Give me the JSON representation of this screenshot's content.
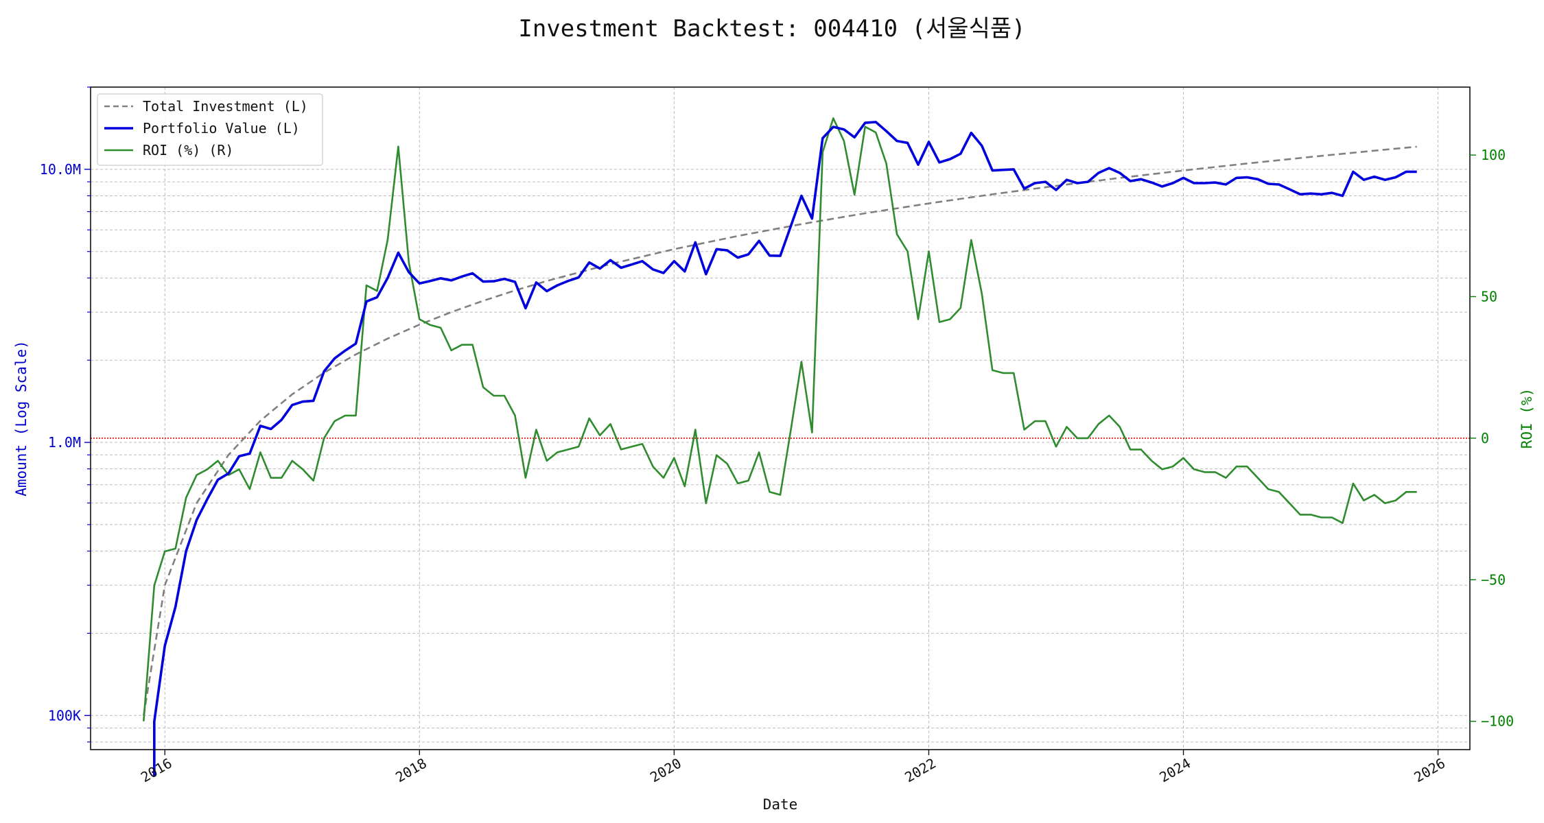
{
  "colors": {
    "portfolio": "#0000dd",
    "investment": "#808080",
    "roi": "#2e8b2e",
    "roi_axis": "#008000",
    "left_axis": "#0000cc",
    "zero_line": "#dd0000",
    "grid": "#bbbbbb"
  },
  "chart_data": {
    "type": "line",
    "title": "Investment Backtest: 004410 (서울식품)",
    "xlabel": "Date",
    "ylabel_left": "Amount (Log Scale)",
    "ylabel_right": "ROI (%)",
    "left_scale": "log",
    "left_ylim": [
      75000,
      20000000
    ],
    "right_ylim": [
      -110,
      124
    ],
    "xlim": [
      "2015-06-01",
      "2026-04-01"
    ],
    "grid": true,
    "legend_position": "top-left",
    "x_ticks": [
      "2016",
      "2018",
      "2020",
      "2022",
      "2024",
      "2026"
    ],
    "left_ticks": [
      {
        "value": 100000,
        "label": "100K"
      },
      {
        "value": 1000000,
        "label": "1.0M"
      },
      {
        "value": 10000000,
        "label": "10.0M"
      }
    ],
    "right_ticks": [
      {
        "value": -100,
        "label": "−100"
      },
      {
        "value": -50,
        "label": "−50"
      },
      {
        "value": 0,
        "label": "0"
      },
      {
        "value": 50,
        "label": "50"
      },
      {
        "value": 100,
        "label": "100"
      }
    ],
    "reference_line": {
      "axis": "right",
      "value": 0,
      "style": "dotted"
    },
    "series": [
      {
        "name": "Total Investment (L)",
        "axis": "left",
        "style": "dashed",
        "x": [
          "2015-11",
          "2016-01",
          "2016-04",
          "2016-07",
          "2016-10",
          "2017-01",
          "2017-04",
          "2017-07",
          "2017-10",
          "2018-01",
          "2018-04",
          "2018-07",
          "2018-10",
          "2019-01",
          "2019-07",
          "2020-01",
          "2020-07",
          "2021-01",
          "2021-07",
          "2022-01",
          "2022-07",
          "2023-01",
          "2023-07",
          "2024-01",
          "2024-07",
          "2025-01",
          "2025-07",
          "2025-11"
        ],
        "values": [
          100000,
          300000,
          600000,
          900000,
          1200000,
          1500000,
          1800000,
          2100000,
          2400000,
          2700000,
          3000000,
          3300000,
          3600000,
          3900000,
          4500000,
          5100000,
          5700000,
          6300000,
          6900000,
          7500000,
          8100000,
          8700000,
          9300000,
          9900000,
          10500000,
          11100000,
          11700000,
          12100000
        ]
      },
      {
        "name": "Portfolio Value (L)",
        "axis": "left",
        "style": "solid",
        "x": [
          "2015-12",
          "2015-12",
          "2016-01",
          "2016-02",
          "2016-03",
          "2016-04",
          "2016-05",
          "2016-06",
          "2016-07",
          "2016-08",
          "2016-09",
          "2016-10",
          "2016-11",
          "2016-12",
          "2017-01",
          "2017-02",
          "2017-03",
          "2017-04",
          "2017-05",
          "2017-06",
          "2017-07",
          "2017-08",
          "2017-09",
          "2017-10",
          "2017-11",
          "2017-12",
          "2018-01",
          "2018-02",
          "2018-03",
          "2018-04",
          "2018-05",
          "2018-06",
          "2018-07",
          "2018-08",
          "2018-09",
          "2018-10",
          "2018-11",
          "2018-12",
          "2019-01",
          "2019-02",
          "2019-03",
          "2019-04",
          "2019-05",
          "2019-06",
          "2019-07",
          "2019-08",
          "2019-09",
          "2019-10",
          "2019-11",
          "2019-12",
          "2020-01",
          "2020-02",
          "2020-03",
          "2020-04",
          "2020-05",
          "2020-06",
          "2020-07",
          "2020-08",
          "2020-09",
          "2020-10",
          "2020-11",
          "2020-12",
          "2021-01",
          "2021-02",
          "2021-03",
          "2021-04",
          "2021-05",
          "2021-06",
          "2021-07",
          "2021-08",
          "2021-09",
          "2021-10",
          "2021-11",
          "2021-12",
          "2022-01",
          "2022-02",
          "2022-03",
          "2022-04",
          "2022-05",
          "2022-06",
          "2022-07",
          "2022-08",
          "2022-09",
          "2022-10",
          "2022-11",
          "2022-12",
          "2023-01",
          "2023-02",
          "2023-03",
          "2023-04",
          "2023-05",
          "2023-06",
          "2023-07",
          "2023-08",
          "2023-09",
          "2023-10",
          "2023-11",
          "2023-12",
          "2024-01",
          "2024-02",
          "2024-03",
          "2024-04",
          "2024-05",
          "2024-06",
          "2024-07",
          "2024-08",
          "2024-09",
          "2024-10",
          "2024-11",
          "2024-12",
          "2025-01",
          "2025-02",
          "2025-03",
          "2025-04",
          "2025-05",
          "2025-06",
          "2025-07",
          "2025-08",
          "2025-09",
          "2025-10",
          "2025-11"
        ],
        "values": [
          60000,
          95000,
          180000,
          250000,
          400000,
          520000,
          620000,
          730000,
          770000,
          890000,
          910000,
          1150000,
          1120000,
          1210000,
          1370000,
          1410000,
          1420000,
          1820000,
          2030000,
          2170000,
          2300000,
          3280000,
          3400000,
          4000000,
          4950000,
          4200000,
          3820000,
          3900000,
          3990000,
          3920000,
          4050000,
          4160000,
          3880000,
          3890000,
          3970000,
          3870000,
          3100000,
          3850000,
          3580000,
          3760000,
          3900000,
          4020000,
          4560000,
          4330000,
          4650000,
          4360000,
          4480000,
          4610000,
          4300000,
          4170000,
          4610000,
          4230000,
          5400000,
          4130000,
          5100000,
          5050000,
          4750000,
          4880000,
          5470000,
          4830000,
          4820000,
          6200000,
          8000000,
          6600000,
          13000000,
          14300000,
          14000000,
          13100000,
          14800000,
          14900000,
          13800000,
          12700000,
          12500000,
          10400000,
          12600000,
          10600000,
          10900000,
          11400000,
          13600000,
          12200000,
          9900000,
          9950000,
          10000000,
          8500000,
          8900000,
          9000000,
          8400000,
          9150000,
          8900000,
          9000000,
          9700000,
          10100000,
          9700000,
          9050000,
          9200000,
          8950000,
          8650000,
          8900000,
          9300000,
          8900000,
          8900000,
          8950000,
          8800000,
          9300000,
          9350000,
          9200000,
          8850000,
          8800000,
          8450000,
          8100000,
          8150000,
          8100000,
          8200000,
          8000000,
          9800000,
          9150000,
          9400000,
          9150000,
          9350000,
          9800000,
          9800000
        ]
      },
      {
        "name": "ROI (%) (R)",
        "axis": "right",
        "style": "solid",
        "x": [
          "2015-11",
          "2015-12",
          "2016-01",
          "2016-02",
          "2016-03",
          "2016-04",
          "2016-05",
          "2016-06",
          "2016-07",
          "2016-08",
          "2016-09",
          "2016-10",
          "2016-11",
          "2016-12",
          "2017-01",
          "2017-02",
          "2017-03",
          "2017-04",
          "2017-05",
          "2017-06",
          "2017-07",
          "2017-08",
          "2017-09",
          "2017-10",
          "2017-11",
          "2017-12",
          "2018-01",
          "2018-02",
          "2018-03",
          "2018-04",
          "2018-05",
          "2018-06",
          "2018-07",
          "2018-08",
          "2018-09",
          "2018-10",
          "2018-11",
          "2018-12",
          "2019-01",
          "2019-02",
          "2019-03",
          "2019-04",
          "2019-05",
          "2019-06",
          "2019-07",
          "2019-08",
          "2019-09",
          "2019-10",
          "2019-11",
          "2019-12",
          "2020-01",
          "2020-02",
          "2020-03",
          "2020-04",
          "2020-05",
          "2020-06",
          "2020-07",
          "2020-08",
          "2020-09",
          "2020-10",
          "2020-11",
          "2020-12",
          "2021-01",
          "2021-02",
          "2021-03",
          "2021-04",
          "2021-05",
          "2021-06",
          "2021-07",
          "2021-08",
          "2021-09",
          "2021-10",
          "2021-11",
          "2021-12",
          "2022-01",
          "2022-02",
          "2022-03",
          "2022-04",
          "2022-05",
          "2022-06",
          "2022-07",
          "2022-08",
          "2022-09",
          "2022-10",
          "2022-11",
          "2022-12",
          "2023-01",
          "2023-02",
          "2023-03",
          "2023-04",
          "2023-05",
          "2023-06",
          "2023-07",
          "2023-08",
          "2023-09",
          "2023-10",
          "2023-11",
          "2023-12",
          "2024-01",
          "2024-02",
          "2024-03",
          "2024-04",
          "2024-05",
          "2024-06",
          "2024-07",
          "2024-08",
          "2024-09",
          "2024-10",
          "2024-11",
          "2024-12",
          "2025-01",
          "2025-02",
          "2025-03",
          "2025-04",
          "2025-05",
          "2025-06",
          "2025-07",
          "2025-08",
          "2025-09",
          "2025-10",
          "2025-11"
        ],
        "values": [
          -100,
          -52,
          -40,
          -39,
          -21,
          -13,
          -11,
          -8,
          -13,
          -11,
          -18,
          -5,
          -14,
          -14,
          -8,
          -11,
          -15,
          0,
          6,
          8,
          8,
          54,
          52,
          70,
          103,
          62,
          42,
          40,
          39,
          31,
          33,
          33,
          18,
          15,
          15,
          8,
          -14,
          3,
          -8,
          -5,
          -4,
          -3,
          7,
          1,
          5,
          -4,
          -3,
          -2,
          -10,
          -14,
          -7,
          -17,
          3,
          -23,
          -6,
          -9,
          -16,
          -15,
          -5,
          -19,
          -20,
          3,
          27,
          2,
          101,
          113,
          105,
          86,
          110,
          108,
          97,
          72,
          66,
          42,
          66,
          41,
          42,
          46,
          70,
          51,
          24,
          23,
          23,
          3,
          6,
          6,
          -3,
          4,
          0,
          0,
          5,
          8,
          4,
          -4,
          -4,
          -8,
          -11,
          -10,
          -7,
          -11,
          -12,
          -12,
          -14,
          -10,
          -10,
          -14,
          -18,
          -19,
          -23,
          -27,
          -27,
          -28,
          -28,
          -30,
          -16,
          -22,
          -20,
          -23,
          -22,
          -19,
          -19
        ]
      }
    ]
  }
}
